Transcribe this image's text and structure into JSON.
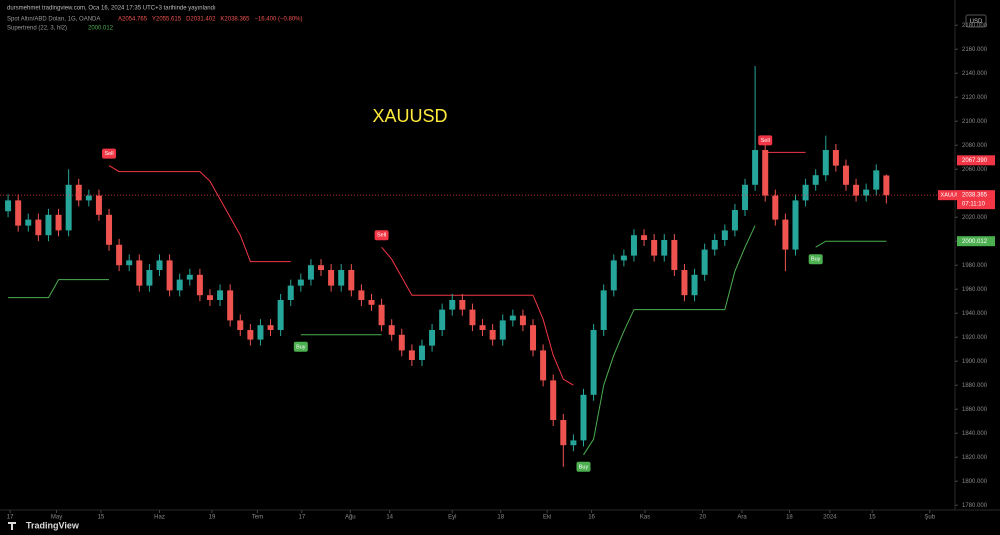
{
  "header": {
    "publisher": "dursmehmet tradingview.com, Oca 16, 2024 17:35 UTC+3 tarihinde yayınlandı",
    "symbol": "Spot Altın/ABD Doları, 1G, OANDA",
    "ohlc": [
      "A2054.765",
      "Y2055.615",
      "D2031.402",
      "K2038.365",
      "−16.400 (−0.80%)"
    ],
    "indicator": "Supertrend (22, 3, hl2)",
    "indicator_value": "2000.012",
    "currency": "USD",
    "brand": "TradingView"
  },
  "chart_data": {
    "type": "candlestick",
    "title": "XAUUSD",
    "title_color": "#ffeb3b",
    "up_color": "#26a69a",
    "down_color": "#ef5350",
    "x": [
      0,
      1,
      2,
      3,
      4,
      5,
      6,
      7,
      8,
      9,
      10,
      11,
      12,
      13,
      14,
      15,
      16,
      17,
      18,
      19,
      20,
      21,
      22,
      23,
      24,
      25,
      26,
      27,
      28,
      29,
      30,
      31,
      32,
      33,
      34,
      35,
      36,
      37,
      38,
      39,
      40,
      41,
      42,
      43,
      44,
      45,
      46,
      47,
      48,
      49,
      50,
      51,
      52,
      53,
      54,
      55,
      56,
      57,
      58,
      59,
      60,
      61,
      62,
      63,
      64,
      65,
      66,
      67,
      68,
      69,
      70,
      71,
      72,
      73,
      74,
      75,
      76,
      77,
      78,
      79,
      80,
      81,
      82,
      83,
      84,
      85,
      86,
      87
    ],
    "open": [
      2025,
      2034,
      2013,
      2018,
      2005,
      2022,
      2009,
      2047,
      2034,
      2038,
      2022,
      1997,
      1980,
      1984,
      1963,
      1976,
      1984,
      1959,
      1968,
      1972,
      1955,
      1951,
      1959,
      1934,
      1926,
      1918,
      1930,
      1926,
      1951,
      1963,
      1968,
      1980,
      1976,
      1963,
      1976,
      1959,
      1951,
      1947,
      1930,
      1922,
      1909,
      1901,
      1913,
      1926,
      1943,
      1951,
      1943,
      1930,
      1926,
      1918,
      1934,
      1938,
      1930,
      1909,
      1884,
      1851,
      1830,
      1834,
      1872,
      1926,
      1959,
      1984,
      1988,
      2005,
      2001,
      1988,
      2001,
      1976,
      1955,
      1972,
      1993,
      2001,
      2009,
      2026,
      2047,
      2076,
      2038,
      2018,
      1993,
      2034,
      2047,
      2055,
      2076,
      2063,
      2047,
      2038,
      2043,
      2054.765
    ],
    "high": [
      2039,
      2039,
      2023,
      2023,
      2027,
      2027,
      2060,
      2052,
      2043,
      2043,
      2027,
      2002,
      1989,
      1989,
      1981,
      1989,
      1989,
      1973,
      1977,
      1977,
      1960,
      1964,
      1964,
      1939,
      1931,
      1935,
      1935,
      1956,
      1968,
      1973,
      1985,
      1985,
      1981,
      1981,
      1981,
      1964,
      1956,
      1952,
      1935,
      1927,
      1914,
      1918,
      1931,
      1948,
      1956,
      1956,
      1948,
      1935,
      1931,
      1939,
      1943,
      1943,
      1935,
      1914,
      1889,
      1856,
      1839,
      1877,
      1931,
      1964,
      1989,
      1993,
      2010,
      2010,
      2006,
      2006,
      2006,
      1981,
      1977,
      1998,
      2006,
      2014,
      2031,
      2052,
      2146,
      2081,
      2043,
      2023,
      2039,
      2052,
      2060,
      2088,
      2081,
      2068,
      2052,
      2048,
      2064,
      2055.615
    ],
    "low": [
      2020,
      2008,
      2008,
      2000,
      2000,
      2004,
      2004,
      2029,
      2029,
      2017,
      1992,
      1975,
      1975,
      1958,
      1958,
      1971,
      1954,
      1954,
      1963,
      1950,
      1946,
      1946,
      1929,
      1921,
      1913,
      1913,
      1921,
      1921,
      1946,
      1958,
      1963,
      1971,
      1958,
      1958,
      1954,
      1946,
      1942,
      1925,
      1917,
      1904,
      1896,
      1896,
      1908,
      1921,
      1938,
      1938,
      1925,
      1921,
      1913,
      1913,
      1929,
      1925,
      1904,
      1879,
      1846,
      1812,
      1825,
      1829,
      1867,
      1921,
      1954,
      1979,
      1983,
      1996,
      1983,
      1983,
      1971,
      1950,
      1950,
      1967,
      1988,
      1996,
      2004,
      2021,
      2042,
      2033,
      2013,
      1975,
      1988,
      2029,
      2042,
      2050,
      2058,
      2042,
      2033,
      2033,
      2038,
      2031.402
    ],
    "close": [
      2034,
      2013,
      2018,
      2005,
      2022,
      2009,
      2047,
      2034,
      2038,
      2022,
      1997,
      1980,
      1984,
      1963,
      1976,
      1984,
      1959,
      1968,
      1972,
      1955,
      1951,
      1959,
      1934,
      1926,
      1918,
      1930,
      1926,
      1951,
      1963,
      1968,
      1980,
      1976,
      1963,
      1976,
      1959,
      1951,
      1947,
      1930,
      1922,
      1909,
      1901,
      1913,
      1926,
      1943,
      1951,
      1943,
      1930,
      1926,
      1918,
      1934,
      1938,
      1930,
      1909,
      1884,
      1851,
      1830,
      1834,
      1872,
      1926,
      1959,
      1984,
      1988,
      2005,
      2001,
      1988,
      2001,
      1976,
      1955,
      1972,
      1993,
      2001,
      2009,
      2026,
      2047,
      2076,
      2038,
      2018,
      1993,
      2034,
      2047,
      2055,
      2076,
      2063,
      2047,
      2038,
      2043,
      2059,
      2038.365
    ],
    "supertrend": {
      "up": {
        "signal": "Buy",
        "color": "#4caf50",
        "values": [
          1953,
          1953,
          1953,
          1953,
          1953,
          1968,
          1968,
          1968,
          1968,
          1968,
          1968,
          null,
          null,
          null,
          null,
          null,
          null,
          null,
          null,
          null,
          null,
          null,
          null,
          null,
          null,
          null,
          null,
          null,
          null,
          1922,
          1922,
          1922,
          1922,
          1922,
          1922,
          1922,
          1922,
          1922,
          null,
          null,
          null,
          null,
          null,
          null,
          null,
          null,
          null,
          null,
          null,
          null,
          null,
          null,
          null,
          null,
          null,
          null,
          null,
          1822,
          1835,
          1880,
          1905,
          1925,
          1943,
          1943,
          1943,
          1943,
          1943,
          1943,
          1943,
          1943,
          1943,
          1943,
          1975,
          1995,
          2013,
          null,
          null,
          null,
          null,
          null,
          1995,
          2000.012,
          2000.012,
          2000.012,
          2000.012,
          2000.012,
          2000.012,
          2000.012
        ]
      },
      "down": {
        "signal": "Sell",
        "color": "#f23645",
        "values": [
          null,
          null,
          null,
          null,
          null,
          null,
          null,
          null,
          null,
          null,
          2063,
          2058,
          2058,
          2058,
          2058,
          2058,
          2058,
          2058,
          2058,
          2058,
          2050,
          2035,
          2020,
          2005,
          1983,
          1983,
          1983,
          1983,
          1983,
          null,
          null,
          null,
          null,
          null,
          null,
          null,
          null,
          1995,
          1985,
          1970,
          1955,
          1955,
          1955,
          1955,
          1955,
          1955,
          1955,
          1955,
          1955,
          1955,
          1955,
          1955,
          1955,
          1935,
          1905,
          1885,
          1880,
          null,
          null,
          null,
          null,
          null,
          null,
          null,
          null,
          null,
          null,
          null,
          null,
          null,
          null,
          null,
          null,
          null,
          null,
          2074,
          2074,
          2074,
          2074,
          2074,
          null,
          null,
          null,
          null,
          null,
          null,
          null,
          null
        ]
      }
    },
    "xlim": [
      -0.8,
      93.8
    ],
    "xticks": [
      {
        "value": 0.2,
        "label": "17"
      },
      {
        "value": 4.8,
        "label": "May"
      },
      {
        "value": 9.2,
        "label": "15"
      },
      {
        "value": 15,
        "label": "Haz"
      },
      {
        "value": 20.2,
        "label": "19"
      },
      {
        "value": 24.7,
        "label": "Tem"
      },
      {
        "value": 29.1,
        "label": "17"
      },
      {
        "value": 33.9,
        "label": "Ağu"
      },
      {
        "value": 37.8,
        "label": "14"
      },
      {
        "value": 44,
        "label": "Eyl"
      },
      {
        "value": 48.8,
        "label": "18"
      },
      {
        "value": 53.4,
        "label": "Eki"
      },
      {
        "value": 57.8,
        "label": "16"
      },
      {
        "value": 63.1,
        "label": "Kas"
      },
      {
        "value": 68.8,
        "label": "20"
      },
      {
        "value": 72.7,
        "label": "Ara"
      },
      {
        "value": 77.4,
        "label": "18"
      },
      {
        "value": 81.4,
        "label": "2024"
      },
      {
        "value": 85.6,
        "label": "15"
      },
      {
        "value": 91.3,
        "label": "Şub"
      }
    ],
    "ylim": [
      1776,
      2191
    ],
    "yticks": [
      {
        "value": 1780,
        "label": "1780.000"
      },
      {
        "value": 1800,
        "label": "1800.000"
      },
      {
        "value": 1820,
        "label": "1820.000"
      },
      {
        "value": 1840,
        "label": "1840.000"
      },
      {
        "value": 1860,
        "label": "1860.000"
      },
      {
        "value": 1880,
        "label": "1880.000"
      },
      {
        "value": 1900,
        "label": "1900.000"
      },
      {
        "value": 1920,
        "label": "1920.000"
      },
      {
        "value": 1940,
        "label": "1940.000"
      },
      {
        "value": 1960,
        "label": "1960.000"
      },
      {
        "value": 1980,
        "label": "1980.000"
      },
      {
        "value": 2000,
        "label": "2000.000"
      },
      {
        "value": 2020,
        "label": "2020.000"
      },
      {
        "value": 2040,
        "label": "2040.000"
      },
      {
        "value": 2060,
        "label": "2060.000"
      },
      {
        "value": 2080,
        "label": "2080.000"
      },
      {
        "value": 2100,
        "label": "2100.000"
      },
      {
        "value": 2120,
        "label": "2120.000"
      },
      {
        "value": 2140,
        "label": "2140.000"
      },
      {
        "value": 2160,
        "label": "2160.000"
      },
      {
        "value": 2180,
        "label": "2180.000"
      }
    ],
    "price_tags": [
      {
        "value": 2067.39,
        "label": "2067.390",
        "color": "#f23645"
      },
      {
        "value": 2038.365,
        "label": "2038.365",
        "color": "#f23645",
        "symbol": "XAUUSD",
        "countdown": "07:11:10"
      },
      {
        "value": 2000.012,
        "label": "2000.012",
        "color": "#4caf50"
      }
    ]
  }
}
